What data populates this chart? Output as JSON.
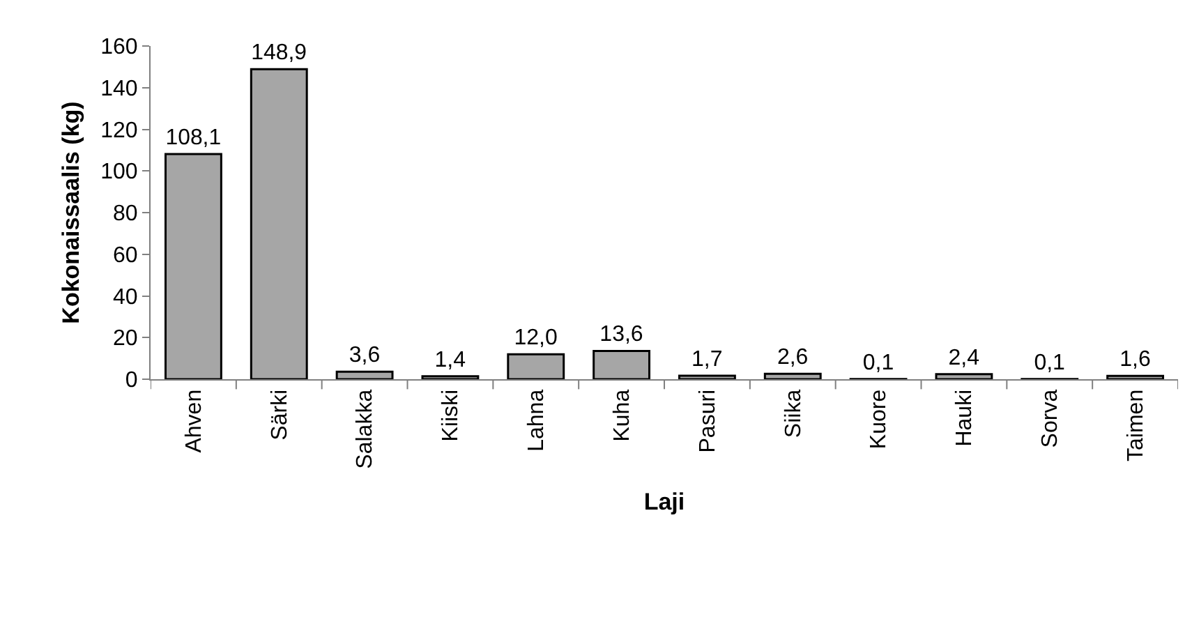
{
  "chart_data": {
    "type": "bar",
    "xlabel": "Laji",
    "ylabel": "Kokonaissaalis (kg)",
    "categories": [
      "Ahven",
      "Särki",
      "Salakka",
      "Kiiski",
      "Lahna",
      "Kuha",
      "Pasuri",
      "Siika",
      "Kuore",
      "Hauki",
      "Sorva",
      "Taimen"
    ],
    "values": [
      108.1,
      148.9,
      3.6,
      1.4,
      12.0,
      13.6,
      1.7,
      2.6,
      0.1,
      2.4,
      0.1,
      1.6
    ],
    "value_labels": [
      "108,1",
      "148,9",
      "3,6",
      "1,4",
      "12,0",
      "13,6",
      "1,7",
      "2,6",
      "0,1",
      "2,4",
      "0,1",
      "1,6"
    ],
    "color": "#a6a6a6",
    "ylim": [
      0,
      160
    ],
    "yticks": [
      0,
      20,
      40,
      60,
      80,
      100,
      120,
      140,
      160
    ],
    "grid": false
  }
}
